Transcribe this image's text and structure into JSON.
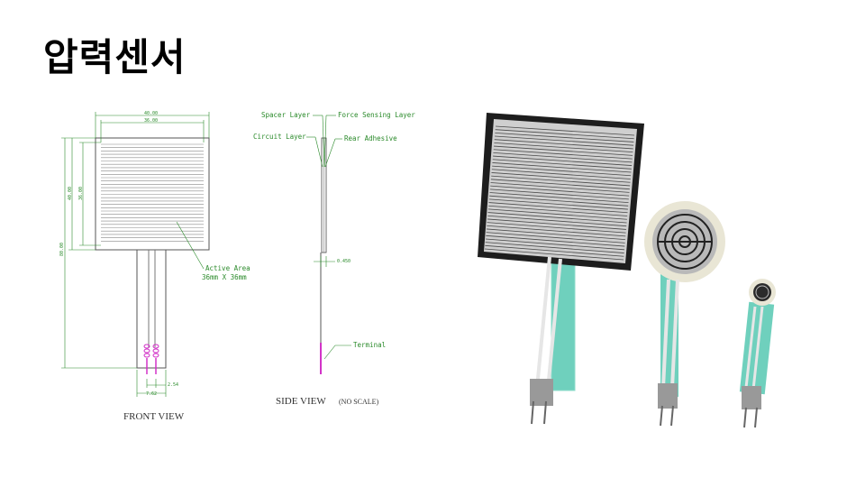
{
  "slide": {
    "title": "압력센서"
  },
  "front_view": {
    "caption": "FRONT VIEW",
    "dim_top_outer": "40.00",
    "dim_top_inner": "36.00",
    "dim_left_outer": "40.00",
    "dim_left_inner": "36.00",
    "dim_total": "80.00",
    "dim_lead_spacing": "2.54",
    "dim_lead_width": "7.62",
    "active_area_label": "Active Area",
    "active_area_size": "36mm X 36mm"
  },
  "side_view": {
    "caption": "SIDE VIEW",
    "caption_note": "(NO SCALE)",
    "spacer_layer": "Spacer Layer",
    "force_sensing_layer": "Force Sensing Layer",
    "circuit_layer": "Circuit Layer",
    "rear_adhesive": "Rear Adhesive",
    "thickness": "0.450",
    "terminal": "Terminal"
  },
  "photo": {
    "sensors": [
      "square-fsr",
      "round-fsr",
      "small-fsr"
    ]
  },
  "colors": {
    "dimension_green": "#2a8a2a",
    "sensor_gray": "#8a8a8a",
    "trace_teal": "#5fc9b4",
    "pin_magenta": "#d233c8"
  }
}
